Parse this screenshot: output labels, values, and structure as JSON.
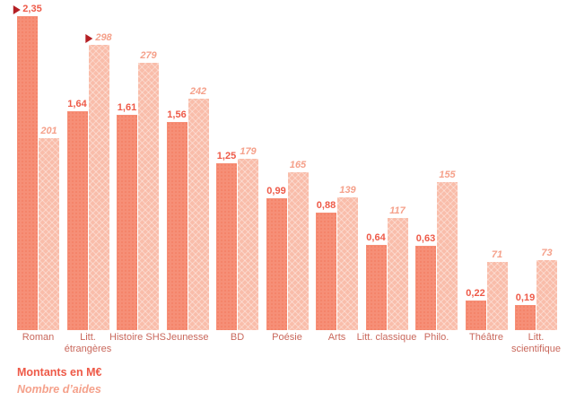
{
  "chart_data": {
    "type": "bar",
    "title": "",
    "xlabel": "",
    "ylabel": "",
    "grid": false,
    "axes_hidden": true,
    "legend_position": "bottom-left",
    "marker_color": "#b41f24",
    "category_label_color": "#c9685c",
    "categories": [
      "Roman",
      "Litt. étrangères",
      "Histoire SHS",
      "Jeunesse",
      "BD",
      "Poésie",
      "Arts",
      "Litt. classique",
      "Philo.",
      "Théâtre",
      "Litt. scientifique"
    ],
    "series": [
      {
        "name": "Montants en M€",
        "values": [
          2.35,
          1.64,
          1.61,
          1.56,
          1.25,
          0.99,
          0.88,
          0.64,
          0.63,
          0.22,
          0.19
        ],
        "labels": [
          "2,35",
          "1,64",
          "1,61",
          "1,56",
          "1,25",
          "0,99",
          "0,88",
          "0,64",
          "0,63",
          "0,22",
          "0,19"
        ],
        "color": "#f68f77",
        "label_color": "#ee5a48",
        "max_marker_index": 0
      },
      {
        "name": "Nombre d’aides",
        "values": [
          201,
          298,
          279,
          242,
          179,
          165,
          139,
          117,
          155,
          71,
          73
        ],
        "labels": [
          "201",
          "298",
          "279",
          "242",
          "179",
          "165",
          "139",
          "117",
          "155",
          "71",
          "73"
        ],
        "color": "#f9bdaa",
        "label_color": "#f5a18b",
        "max_marker_index": 1
      }
    ]
  }
}
